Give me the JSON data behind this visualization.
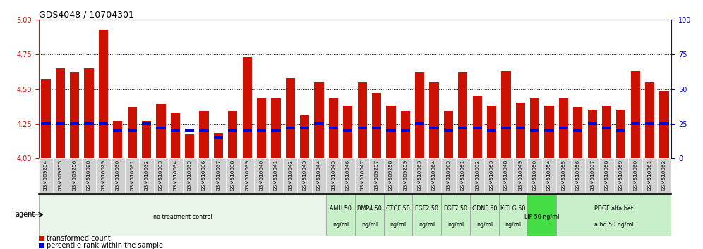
{
  "title": "GDS4048 / 10704301",
  "samples": [
    "GSM509254",
    "GSM509255",
    "GSM509256",
    "GSM510028",
    "GSM510029",
    "GSM510030",
    "GSM510031",
    "GSM510032",
    "GSM510033",
    "GSM510034",
    "GSM510035",
    "GSM510036",
    "GSM510037",
    "GSM510038",
    "GSM510039",
    "GSM510040",
    "GSM510041",
    "GSM510042",
    "GSM510043",
    "GSM510044",
    "GSM510045",
    "GSM510046",
    "GSM510047",
    "GSM509257",
    "GSM509258",
    "GSM509259",
    "GSM510063",
    "GSM510064",
    "GSM510065",
    "GSM510051",
    "GSM510052",
    "GSM510053",
    "GSM510048",
    "GSM510049",
    "GSM510050",
    "GSM510054",
    "GSM510055",
    "GSM510056",
    "GSM510057",
    "GSM510058",
    "GSM510059",
    "GSM510060",
    "GSM510061",
    "GSM510062"
  ],
  "bar_heights": [
    4.57,
    4.65,
    4.62,
    4.65,
    4.93,
    4.27,
    4.37,
    4.27,
    4.39,
    4.33,
    4.17,
    4.34,
    4.18,
    4.34,
    4.73,
    4.43,
    4.43,
    4.58,
    4.31,
    4.55,
    4.43,
    4.38,
    4.55,
    4.47,
    4.38,
    4.34,
    4.62,
    4.55,
    4.34,
    4.62,
    4.45,
    4.38,
    4.63,
    4.4,
    4.43,
    4.38,
    4.43,
    4.37,
    4.35,
    4.38,
    4.35,
    4.63,
    4.55,
    4.48
  ],
  "percentile_ranks": [
    25,
    25,
    25,
    25,
    25,
    20,
    20,
    25,
    22,
    20,
    20,
    20,
    15,
    20,
    20,
    20,
    20,
    22,
    22,
    25,
    22,
    20,
    22,
    22,
    20,
    20,
    25,
    22,
    20,
    22,
    22,
    20,
    22,
    22,
    20,
    20,
    22,
    20,
    25,
    22,
    20,
    25,
    25,
    25
  ],
  "agent_groups": [
    {
      "label": "no treatment control",
      "start": 0,
      "end": 20,
      "color": "#e8f5e8"
    },
    {
      "label": "AMH 50\nng/ml",
      "start": 20,
      "end": 22,
      "color": "#c8f0c8"
    },
    {
      "label": "BMP4 50\nng/ml",
      "start": 22,
      "end": 24,
      "color": "#c8f0c8"
    },
    {
      "label": "CTGF 50\nng/ml",
      "start": 24,
      "end": 26,
      "color": "#c8f0c8"
    },
    {
      "label": "FGF2 50\nng/ml",
      "start": 26,
      "end": 28,
      "color": "#c8f0c8"
    },
    {
      "label": "FGF7 50\nng/ml",
      "start": 28,
      "end": 30,
      "color": "#c8f0c8"
    },
    {
      "label": "GDNF 50\nng/ml",
      "start": 30,
      "end": 32,
      "color": "#c8f0c8"
    },
    {
      "label": "KITLG 50\nng/ml",
      "start": 32,
      "end": 34,
      "color": "#c8f0c8"
    },
    {
      "label": "LIF 50 ng/ml",
      "start": 34,
      "end": 36,
      "color": "#44dd44"
    },
    {
      "label": "PDGF alfa bet\na hd 50 ng/ml",
      "start": 36,
      "end": 44,
      "color": "#c8f0c8"
    }
  ],
  "ylim_left": [
    4.0,
    5.0
  ],
  "ylim_right": [
    0,
    100
  ],
  "yticks_left": [
    4.0,
    4.25,
    4.5,
    4.75,
    5.0
  ],
  "yticks_right": [
    0,
    25,
    50,
    75,
    100
  ],
  "hlines": [
    4.25,
    4.5,
    4.75
  ],
  "bar_color": "#cc1100",
  "percentile_color": "#0000cc",
  "bg_color": "#ffffff",
  "axis_color_left": "#cc1100",
  "axis_color_right": "#0000cc",
  "plot_bg": "#ffffff",
  "xtick_bg": "#d0d0d0",
  "agent_left_label": "agent"
}
